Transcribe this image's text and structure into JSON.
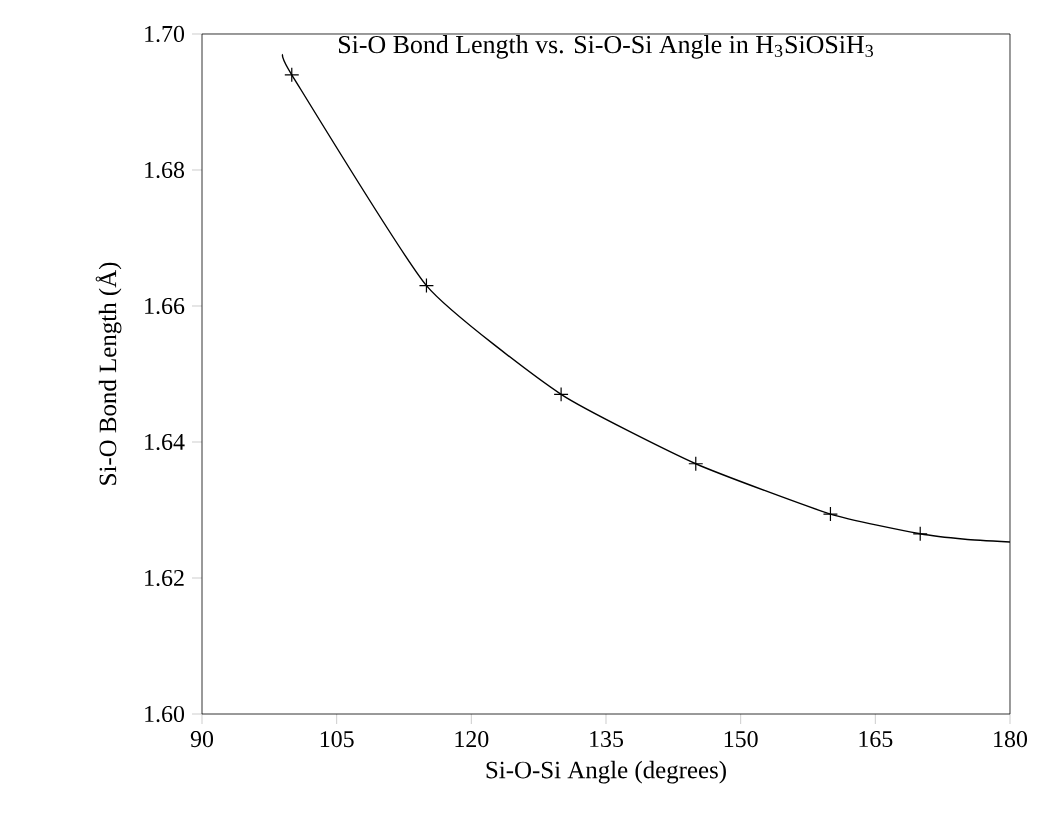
{
  "chart_data": {
    "type": "scatter",
    "title": "Si-O Bond Length vs. Si-O-Si Angle in H$_{3}$SiOSiH$_{3}$",
    "xlabel": "Si-O-Si Angle (degrees)",
    "ylabel": "Si-O Bond Length (Å)",
    "xlim": [
      90,
      180
    ],
    "ylim": [
      1.6,
      1.7
    ],
    "xticks": [
      90,
      105,
      120,
      135,
      150,
      165,
      180
    ],
    "yticks": [
      {
        "value": 1.6,
        "label": "1.60"
      },
      {
        "value": 1.62,
        "label": "1.62"
      },
      {
        "value": 1.64,
        "label": "1.64"
      },
      {
        "value": 1.66,
        "label": "1.66"
      },
      {
        "value": 1.68,
        "label": "1.68"
      },
      {
        "value": 1.7,
        "label": "1.70"
      }
    ],
    "grid": false,
    "series": [
      {
        "type": "line",
        "color": "#000000",
        "x": [
          99,
          100,
          115,
          130,
          145,
          160,
          170,
          175,
          180
        ],
        "values": [
          1.697,
          1.694,
          1.663,
          1.647,
          1.6368,
          1.6294,
          1.6265,
          1.6257,
          1.6253
        ]
      },
      {
        "marker": "cross",
        "color": "#000000",
        "x": [
          100,
          115,
          130,
          145,
          160,
          170
        ],
        "values": [
          1.694,
          1.663,
          1.647,
          1.6368,
          1.6294,
          1.6265
        ]
      }
    ]
  }
}
